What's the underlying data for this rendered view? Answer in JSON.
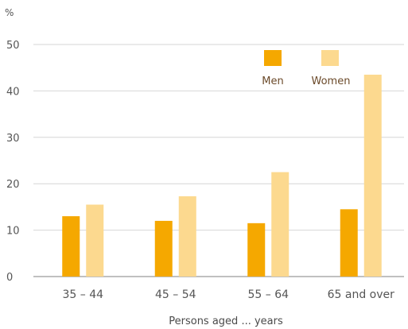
{
  "chart_data": {
    "type": "bar",
    "unit_label": "%",
    "ylim": [
      0,
      50
    ],
    "yticks": [
      "0",
      "10",
      "20",
      "30",
      "40",
      "50"
    ],
    "grid": true,
    "categories": [
      "35 – 44",
      "45 – 54",
      "55 – 64",
      "65 and over"
    ],
    "series": [
      {
        "name": "Men",
        "values": [
          13,
          12,
          11.5,
          14.5
        ],
        "color": "#f5a800"
      },
      {
        "name": "Women",
        "values": [
          15.5,
          17.3,
          22.5,
          43.5
        ],
        "color": "#fcd98f"
      }
    ],
    "xlabel": "Persons aged ... years",
    "ylabel": "",
    "legend_position": "top-right"
  }
}
